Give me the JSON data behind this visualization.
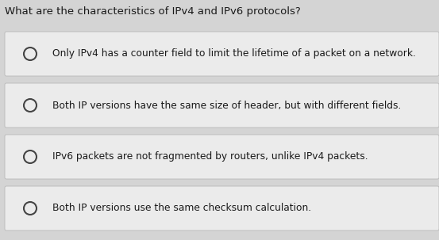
{
  "title": "What are the characteristics of IPv4 and IPv6 protocols?",
  "title_fontsize": 9.5,
  "title_color": "#1a1a1a",
  "background_color": "#d4d4d4",
  "card_background": "#ebebeb",
  "card_border_color": "#b8b8b8",
  "options": [
    "Only IPv4 has a counter field to limit the lifetime of a packet on a network.",
    "Both IP versions have the same size of header, but with different fields.",
    "IPv6 packets are not fragmented by routers, unlike IPv4 packets.",
    "Both IP versions use the same checksum calculation."
  ],
  "option_fontsize": 8.8,
  "option_color": "#1a1a1a",
  "circle_color": "#444444",
  "fig_width": 5.53,
  "fig_height": 3.03,
  "dpi": 100
}
